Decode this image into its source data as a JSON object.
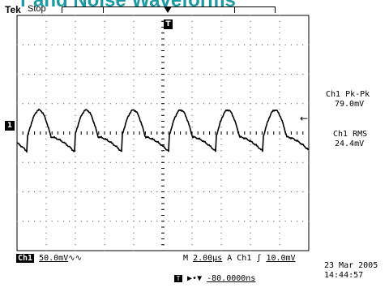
{
  "page": {
    "title": "r and Noise Waveforms"
  },
  "header": {
    "brand": "Tek",
    "run_state": "Stop"
  },
  "markers": {
    "trigger_position": "↓",
    "trigger_level": "T",
    "ch1_ground": "1",
    "trigger_arrow": "←"
  },
  "measurements": [
    {
      "name": "Ch1 Pk-Pk",
      "value": "79.0mV"
    },
    {
      "name": "Ch1 RMS",
      "value": "24.4mV"
    }
  ],
  "status": {
    "channel": "Ch1",
    "scale": "50.0mV",
    "coupling": "∿∿",
    "timebase_prefix": "M",
    "timebase": "2.00µs",
    "trigger_mode": "A",
    "trigger_channel": "Ch1",
    "trigger_slope": "ʃ",
    "trigger_level": "10.0mV",
    "date": "23 Mar 2005",
    "time": "14:44:57",
    "trigger_offset_prefix": "▶•▼",
    "trigger_offset": "-80.0000ns"
  },
  "waveform": {
    "channel": "Ch1",
    "volts_per_div": 50.0,
    "time_per_div_us": 2.0,
    "peak_to_peak_mv": 79.0,
    "rms_mv": 24.4,
    "cycles_visible": 6
  }
}
